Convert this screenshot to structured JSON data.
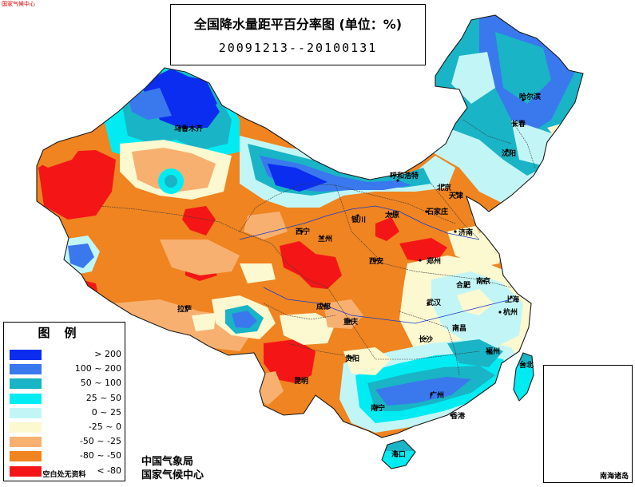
{
  "header": {
    "title": "全国降水量距平百分率图 (单位：%)",
    "period": "20091213--20100131"
  },
  "legend": {
    "title": "图例",
    "items": [
      {
        "label": "> 200",
        "color": "#0a2df0"
      },
      {
        "label": "100 ~ 200",
        "color": "#3a78ee"
      },
      {
        "label": "50 ~ 100",
        "color": "#19b4c6"
      },
      {
        "label": "25 ~ 50",
        "color": "#00ecf2"
      },
      {
        "label": "0 ~ 25",
        "color": "#c2f6f6"
      },
      {
        "label": "-25 ~ 0",
        "color": "#fcf8d0"
      },
      {
        "label": "-50 ~ -25",
        "color": "#f8b070"
      },
      {
        "label": "-80 ~ -50",
        "color": "#ef8420"
      },
      {
        "label": "< -80",
        "color": "#f41616"
      }
    ],
    "note": "空白处无资料"
  },
  "agency": {
    "line1": "中国气象局",
    "line2": "国家气候中心"
  },
  "inset": {
    "label": "南海诸岛"
  },
  "cities": [
    {
      "name": "哈尔滨",
      "color": "#000000"
    },
    {
      "name": "长春",
      "color": "#000000"
    },
    {
      "name": "沈阳",
      "color": "#000000"
    },
    {
      "name": "呼和浩特",
      "color": "#000000"
    },
    {
      "name": "北京",
      "color": "#000000"
    },
    {
      "name": "天津",
      "color": "#000000"
    },
    {
      "name": "乌鲁木齐",
      "color": "#000000"
    },
    {
      "name": "太原",
      "color": "#000000"
    },
    {
      "name": "石家庄",
      "color": "#000000"
    },
    {
      "name": "济南",
      "color": "#000000"
    },
    {
      "name": "银川",
      "color": "#000000"
    },
    {
      "name": "西宁",
      "color": "#000000"
    },
    {
      "name": "兰州",
      "color": "#000000"
    },
    {
      "name": "郑州",
      "color": "#000000"
    },
    {
      "name": "西安",
      "color": "#000000"
    },
    {
      "name": "合肥",
      "color": "#000000"
    },
    {
      "name": "南京",
      "color": "#000000"
    },
    {
      "name": "上海",
      "color": "#000000"
    },
    {
      "name": "武汉",
      "color": "#000000"
    },
    {
      "name": "杭州",
      "color": "#000000"
    },
    {
      "name": "拉萨",
      "color": "#000000"
    },
    {
      "name": "成都",
      "color": "#000000"
    },
    {
      "name": "重庆",
      "color": "#000000"
    },
    {
      "name": "南昌",
      "color": "#000000"
    },
    {
      "name": "长沙",
      "color": "#000000"
    },
    {
      "name": "福州",
      "color": "#000000"
    },
    {
      "name": "贵阳",
      "color": "#000000"
    },
    {
      "name": "台北",
      "color": "#000000"
    },
    {
      "name": "昆明",
      "color": "#000000"
    },
    {
      "name": "南宁",
      "color": "#000000"
    },
    {
      "name": "广州",
      "color": "#000000"
    },
    {
      "name": "香港",
      "color": "#000000"
    },
    {
      "name": "海口",
      "color": "#000000"
    }
  ],
  "corner_text": "国家气候中心"
}
